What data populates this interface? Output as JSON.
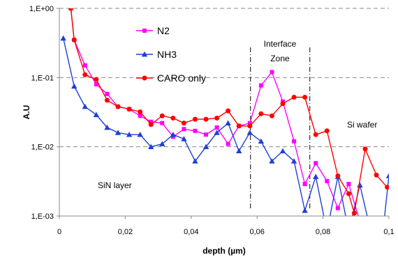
{
  "chart_data": {
    "type": "line",
    "title": "",
    "xlabel": "depth (µm)",
    "ylabel": "A.U",
    "xlim": [
      0,
      0.1
    ],
    "ylim": [
      0.001,
      1
    ],
    "yscale": "log",
    "x_ticks": [
      0,
      0.02,
      0.04,
      0.06,
      0.08,
      0.1
    ],
    "x_tick_labels": [
      "0",
      "0,02",
      "0,04",
      "0,06",
      "0,08",
      "0,1"
    ],
    "y_ticks": [
      1,
      0.1,
      0.01,
      0.001
    ],
    "y_tick_labels": [
      "1,E+00",
      "1,E-01",
      "1,E-02",
      "1,E-03"
    ],
    "grid": "horizontal dashed",
    "legend_position": "top-center",
    "annotations": {
      "interface_zone_line1": "Interface",
      "interface_zone_line2": "Zone",
      "si_wafer": "Si wafer",
      "sin_layer": "SiN layer"
    },
    "reference_lines_x": [
      0.058,
      0.076
    ],
    "series": [
      {
        "name": "N2",
        "color": "#ff00ff",
        "marker": "square",
        "points": [
          [
            0.0035,
            1.0
          ],
          [
            0.0045,
            0.35
          ],
          [
            0.0078,
            0.15
          ],
          [
            0.0112,
            0.08
          ],
          [
            0.0145,
            0.058
          ],
          [
            0.0178,
            0.038
          ],
          [
            0.0212,
            0.035
          ],
          [
            0.0245,
            0.028
          ],
          [
            0.0278,
            0.023
          ],
          [
            0.0312,
            0.022
          ],
          [
            0.0345,
            0.014
          ],
          [
            0.0378,
            0.018
          ],
          [
            0.0412,
            0.017
          ],
          [
            0.0445,
            0.015
          ],
          [
            0.0478,
            0.019
          ],
          [
            0.0512,
            0.011
          ],
          [
            0.0545,
            0.02
          ],
          [
            0.0578,
            0.022
          ],
          [
            0.0612,
            0.077
          ],
          [
            0.0645,
            0.12
          ],
          [
            0.0678,
            0.045
          ],
          [
            0.0712,
            0.012
          ],
          [
            0.0745,
            0.0029
          ],
          [
            0.0778,
            0.0058
          ],
          [
            0.0812,
            0.0032
          ],
          [
            0.0845,
            0.0013
          ],
          [
            0.0878,
            0.0029
          ],
          [
            0.091,
            0.0009
          ],
          [
            0.0945,
            0.0009
          ]
        ]
      },
      {
        "name": "NH3",
        "color": "#1f3fd6",
        "marker": "triangle",
        "points": [
          [
            0.0012,
            0.37
          ],
          [
            0.0045,
            0.075
          ],
          [
            0.0078,
            0.038
          ],
          [
            0.0112,
            0.029
          ],
          [
            0.0145,
            0.019
          ],
          [
            0.0178,
            0.016
          ],
          [
            0.0212,
            0.015
          ],
          [
            0.0245,
            0.015
          ],
          [
            0.0278,
            0.01
          ],
          [
            0.0312,
            0.011
          ],
          [
            0.0345,
            0.015
          ],
          [
            0.0378,
            0.013
          ],
          [
            0.0412,
            0.0062
          ],
          [
            0.0445,
            0.01
          ],
          [
            0.0478,
            0.016
          ],
          [
            0.0512,
            0.022
          ],
          [
            0.0545,
            0.0087
          ],
          [
            0.0578,
            0.016
          ],
          [
            0.0612,
            0.012
          ],
          [
            0.0645,
            0.0062
          ],
          [
            0.0678,
            0.0087
          ],
          [
            0.0712,
            0.0062
          ],
          [
            0.0745,
            0.0012
          ],
          [
            0.0778,
            0.0037
          ],
          [
            0.0812,
            0.0006
          ],
          [
            0.0845,
            0.0037
          ],
          [
            0.0878,
            0.0006
          ],
          [
            0.0912,
            0.0028
          ],
          [
            0.0945,
            0.0006
          ],
          [
            0.0978,
            0.0004
          ],
          [
            0.1,
            0.0038
          ]
        ]
      },
      {
        "name": "CARO only",
        "color": "#ff0000",
        "marker": "circle",
        "points": [
          [
            0.0035,
            1.0
          ],
          [
            0.0045,
            0.35
          ],
          [
            0.0078,
            0.11
          ],
          [
            0.0112,
            0.094
          ],
          [
            0.0145,
            0.047
          ],
          [
            0.0178,
            0.038
          ],
          [
            0.0212,
            0.035
          ],
          [
            0.0245,
            0.032
          ],
          [
            0.0278,
            0.021
          ],
          [
            0.0312,
            0.028
          ],
          [
            0.0345,
            0.026
          ],
          [
            0.0378,
            0.022
          ],
          [
            0.0412,
            0.025
          ],
          [
            0.0445,
            0.025
          ],
          [
            0.0478,
            0.026
          ],
          [
            0.0512,
            0.033
          ],
          [
            0.0545,
            0.02
          ],
          [
            0.0578,
            0.02
          ],
          [
            0.0612,
            0.03
          ],
          [
            0.0645,
            0.028
          ],
          [
            0.0678,
            0.042
          ],
          [
            0.0712,
            0.052
          ],
          [
            0.0745,
            0.052
          ],
          [
            0.0778,
            0.015
          ],
          [
            0.0812,
            0.017
          ],
          [
            0.0845,
            0.0038
          ],
          [
            0.0878,
            0.0021
          ],
          [
            0.0895,
            0.0011
          ],
          [
            0.0928,
            0.0093
          ],
          [
            0.0962,
            0.0039
          ],
          [
            0.0995,
            0.0026
          ]
        ]
      }
    ]
  }
}
